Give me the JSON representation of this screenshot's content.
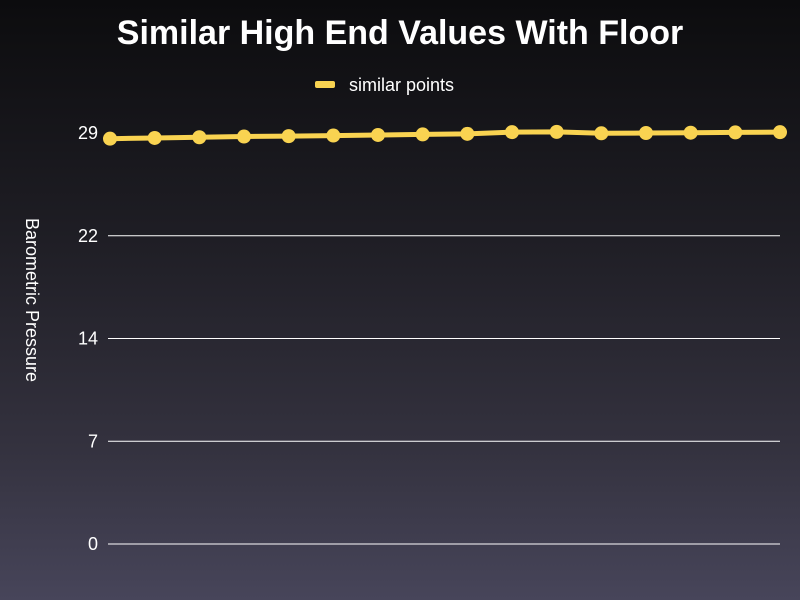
{
  "chart_data": {
    "type": "line",
    "title": "Similar High End Values With Floor",
    "xlabel": "",
    "ylabel": "Barometric Pressure",
    "ylim": [
      0,
      29
    ],
    "y_ticks": [
      "0",
      "7",
      "14",
      "22",
      "29"
    ],
    "y_tick_values": [
      0,
      7.25,
      14.5,
      21.75,
      29
    ],
    "grid": true,
    "legend_position": "top-center",
    "series": [
      {
        "name": "similar points",
        "color": "#f9d351",
        "values": [
          28.6,
          28.65,
          28.7,
          28.75,
          28.78,
          28.82,
          28.86,
          28.9,
          28.94,
          29.06,
          29.08,
          28.98,
          29.0,
          29.02,
          29.04,
          29.06
        ]
      }
    ]
  }
}
